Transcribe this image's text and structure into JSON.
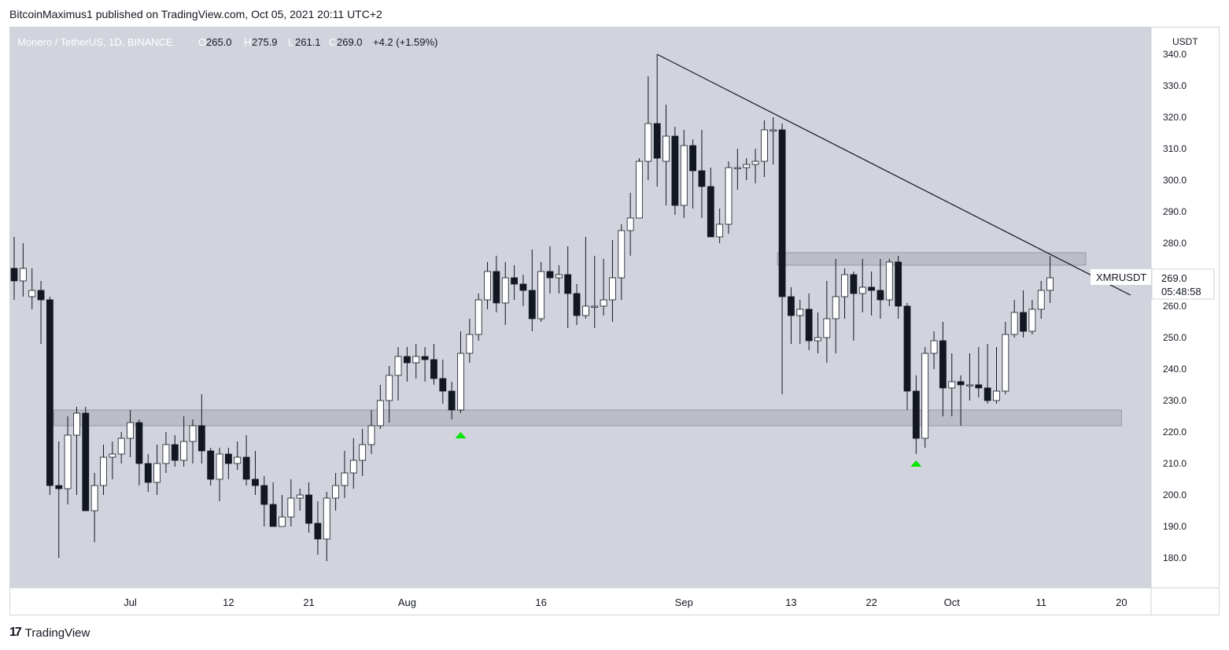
{
  "header": {
    "text": "BitcoinMaximus1 published on TradingView.com, Oct 05, 2021 20:11 UTC+2"
  },
  "legend": {
    "symbol": "Monero / TetherUS, 1D, BINANCE",
    "o_label": "O",
    "o": "265.0",
    "h_label": "H",
    "h": "275.9",
    "l_label": "L",
    "l": "261.1",
    "c_label": "C",
    "c": "269.0",
    "change": "+4.2 (+1.59%)"
  },
  "currency": "USDT",
  "price_tag": {
    "symbol": "XMRUSDT",
    "price": "269.0",
    "countdown": "05:48:58"
  },
  "footer": {
    "logo_glyph": "17",
    "brand": "TradingView"
  },
  "colors": {
    "background": "#d1d4dc",
    "up": "#ffffff",
    "down": "#131722",
    "zone": "#b2b5be",
    "marker": "#00e600"
  },
  "chart_data": {
    "type": "candlestick",
    "grid": false,
    "ylim": [
      170,
      345
    ],
    "y_ticks": [
      180,
      190,
      200,
      210,
      220,
      230,
      240,
      250,
      260,
      270,
      280,
      290,
      300,
      310,
      320,
      330,
      340
    ],
    "y_tick_labels": [
      "180.0",
      "190.0",
      "200.0",
      "210.0",
      "220.0",
      "230.0",
      "240.0",
      "250.0",
      "260.0",
      "270.0",
      "280.0",
      "290.0",
      "300.0",
      "310.0",
      "320.0",
      "330.0",
      "340.0"
    ],
    "x_ticks": [
      {
        "label": "Jul",
        "idx": 13
      },
      {
        "label": "12",
        "idx": 24
      },
      {
        "label": "21",
        "idx": 33
      },
      {
        "label": "Aug",
        "idx": 44
      },
      {
        "label": "16",
        "idx": 59
      },
      {
        "label": "Sep",
        "idx": 75
      },
      {
        "label": "13",
        "idx": 87
      },
      {
        "label": "22",
        "idx": 96
      },
      {
        "label": "Oct",
        "idx": 105
      },
      {
        "label": "11",
        "idx": 115
      },
      {
        "label": "20",
        "idx": 124
      }
    ],
    "candles": [
      [
        0,
        272,
        268,
        282,
        262
      ],
      [
        1,
        268,
        272,
        280,
        263
      ],
      [
        2,
        263,
        265,
        272,
        259
      ],
      [
        3,
        265,
        262,
        268,
        248
      ],
      [
        4,
        262,
        203,
        263,
        200
      ],
      [
        5,
        203,
        202,
        217,
        180
      ],
      [
        6,
        202,
        219,
        225,
        197
      ],
      [
        7,
        219,
        226,
        228,
        200
      ],
      [
        8,
        226,
        195,
        228,
        195
      ],
      [
        9,
        195,
        203,
        207,
        185
      ],
      [
        10,
        203,
        212,
        216,
        200
      ],
      [
        11,
        212,
        213,
        217,
        205
      ],
      [
        12,
        213,
        218,
        220,
        210
      ],
      [
        13,
        218,
        223,
        227,
        212
      ],
      [
        14,
        223,
        210,
        224,
        203
      ],
      [
        15,
        210,
        204,
        213,
        201
      ],
      [
        16,
        204,
        210,
        216,
        200
      ],
      [
        17,
        210,
        216,
        220,
        207
      ],
      [
        18,
        216,
        211,
        219,
        209
      ],
      [
        19,
        211,
        217,
        225,
        209
      ],
      [
        20,
        217,
        222,
        224,
        210
      ],
      [
        21,
        222,
        214,
        232,
        210
      ],
      [
        22,
        214,
        205,
        215,
        203
      ],
      [
        23,
        205,
        213,
        215,
        198
      ],
      [
        24,
        213,
        210,
        215,
        205
      ],
      [
        25,
        210,
        212,
        217,
        208
      ],
      [
        26,
        212,
        205,
        219,
        203
      ],
      [
        27,
        205,
        203,
        214,
        200
      ],
      [
        28,
        203,
        197,
        206,
        190
      ],
      [
        29,
        197,
        190,
        204,
        190
      ],
      [
        30,
        190,
        193,
        200,
        190
      ],
      [
        31,
        193,
        199,
        205,
        190
      ],
      [
        32,
        199,
        200,
        202,
        195
      ],
      [
        33,
        200,
        191,
        204,
        188
      ],
      [
        34,
        191,
        186,
        198,
        181
      ],
      [
        35,
        186,
        199,
        201,
        179
      ],
      [
        36,
        199,
        203,
        207,
        195
      ],
      [
        37,
        203,
        207,
        214,
        199
      ],
      [
        38,
        207,
        211,
        218,
        202
      ],
      [
        39,
        211,
        216,
        221,
        206
      ],
      [
        40,
        216,
        222,
        227,
        213
      ],
      [
        41,
        222,
        230,
        235,
        221
      ],
      [
        42,
        230,
        238,
        241,
        223
      ],
      [
        43,
        238,
        244,
        247,
        230
      ],
      [
        44,
        244,
        242,
        247,
        236
      ],
      [
        45,
        242,
        244,
        248,
        237
      ],
      [
        46,
        244,
        243,
        247,
        236
      ],
      [
        47,
        243,
        237,
        248,
        235
      ],
      [
        48,
        237,
        233,
        243,
        229
      ],
      [
        49,
        233,
        227,
        236,
        224
      ],
      [
        50,
        227,
        245,
        252,
        226
      ],
      [
        51,
        245,
        251,
        256,
        242
      ],
      [
        52,
        251,
        262,
        264,
        249
      ],
      [
        53,
        262,
        271,
        274,
        259
      ],
      [
        54,
        271,
        261,
        276,
        258
      ],
      [
        55,
        261,
        269,
        274,
        254
      ],
      [
        56,
        269,
        267,
        273,
        262
      ],
      [
        57,
        267,
        265,
        270,
        260
      ],
      [
        58,
        265,
        256,
        278,
        252
      ],
      [
        59,
        256,
        271,
        274,
        255
      ],
      [
        60,
        271,
        269,
        279,
        264
      ],
      [
        61,
        269,
        270,
        273,
        264
      ],
      [
        62,
        270,
        264,
        279,
        253
      ],
      [
        63,
        264,
        257,
        267,
        254
      ],
      [
        64,
        257,
        260,
        282,
        256
      ],
      [
        65,
        260,
        260,
        276,
        253
      ],
      [
        66,
        260,
        262,
        275,
        257
      ],
      [
        67,
        262,
        269,
        281,
        255
      ],
      [
        68,
        269,
        284,
        286,
        262
      ],
      [
        69,
        284,
        288,
        296,
        276
      ],
      [
        70,
        288,
        306,
        307,
        290
      ],
      [
        71,
        306,
        318,
        333,
        300
      ],
      [
        72,
        318,
        307,
        340,
        298
      ],
      [
        73,
        306,
        314,
        324,
        292
      ],
      [
        74,
        314,
        292,
        317,
        289
      ],
      [
        75,
        292,
        311,
        316,
        288
      ],
      [
        76,
        311,
        303,
        313,
        291
      ],
      [
        77,
        303,
        298,
        316,
        288
      ],
      [
        78,
        298,
        282,
        304,
        282
      ],
      [
        79,
        282,
        286,
        291,
        280
      ],
      [
        80,
        286,
        304,
        306,
        283
      ],
      [
        81,
        304,
        304,
        310,
        297
      ],
      [
        82,
        304,
        305,
        307,
        300
      ],
      [
        83,
        305,
        306,
        310,
        299
      ],
      [
        84,
        306,
        316,
        319,
        301
      ],
      [
        85,
        316,
        316,
        320,
        305
      ],
      [
        86,
        316,
        263,
        318,
        232
      ],
      [
        87,
        263,
        257,
        266,
        248
      ],
      [
        88,
        257,
        259,
        262,
        248
      ],
      [
        89,
        259,
        249,
        264,
        246
      ],
      [
        90,
        249,
        250,
        258,
        245
      ],
      [
        91,
        250,
        256,
        268,
        242
      ],
      [
        92,
        256,
        263,
        275,
        245
      ],
      [
        93,
        263,
        270,
        272,
        256
      ],
      [
        94,
        270,
        264,
        271,
        249
      ],
      [
        95,
        264,
        266,
        275,
        258
      ],
      [
        96,
        266,
        265,
        271,
        257
      ],
      [
        97,
        265,
        262,
        275,
        256
      ],
      [
        98,
        262,
        274,
        275,
        260
      ],
      [
        99,
        274,
        260,
        276,
        256
      ],
      [
        100,
        260,
        233,
        261,
        227
      ],
      [
        101,
        233,
        218,
        238,
        213
      ],
      [
        102,
        218,
        245,
        247,
        215
      ],
      [
        103,
        245,
        249,
        252,
        240
      ],
      [
        104,
        249,
        234,
        255,
        225
      ],
      [
        105,
        234,
        236,
        245,
        225
      ],
      [
        106,
        236,
        235,
        238,
        222
      ],
      [
        107,
        235,
        235,
        245,
        230
      ],
      [
        108,
        235,
        234,
        247,
        231
      ],
      [
        109,
        234,
        230,
        248,
        229
      ],
      [
        110,
        230,
        233,
        247,
        229
      ],
      [
        111,
        233,
        251,
        255,
        232
      ],
      [
        112,
        251,
        258,
        262,
        250
      ],
      [
        113,
        258,
        252,
        265,
        250
      ],
      [
        114,
        252,
        259,
        262,
        251
      ],
      [
        115,
        259,
        265,
        268,
        256
      ],
      [
        116,
        265,
        269,
        276,
        261
      ]
    ],
    "trendline": [
      [
        72,
        340
      ],
      [
        125,
        263.5
      ]
    ],
    "zones": [
      {
        "from_idx": 5,
        "to_idx": 124,
        "low": 222,
        "high": 227
      },
      {
        "from_idx": 86,
        "to_idx": 120,
        "low": 273,
        "high": 277
      }
    ],
    "markers": [
      {
        "idx": 50,
        "price": 219
      },
      {
        "idx": 101,
        "price": 210
      }
    ]
  }
}
